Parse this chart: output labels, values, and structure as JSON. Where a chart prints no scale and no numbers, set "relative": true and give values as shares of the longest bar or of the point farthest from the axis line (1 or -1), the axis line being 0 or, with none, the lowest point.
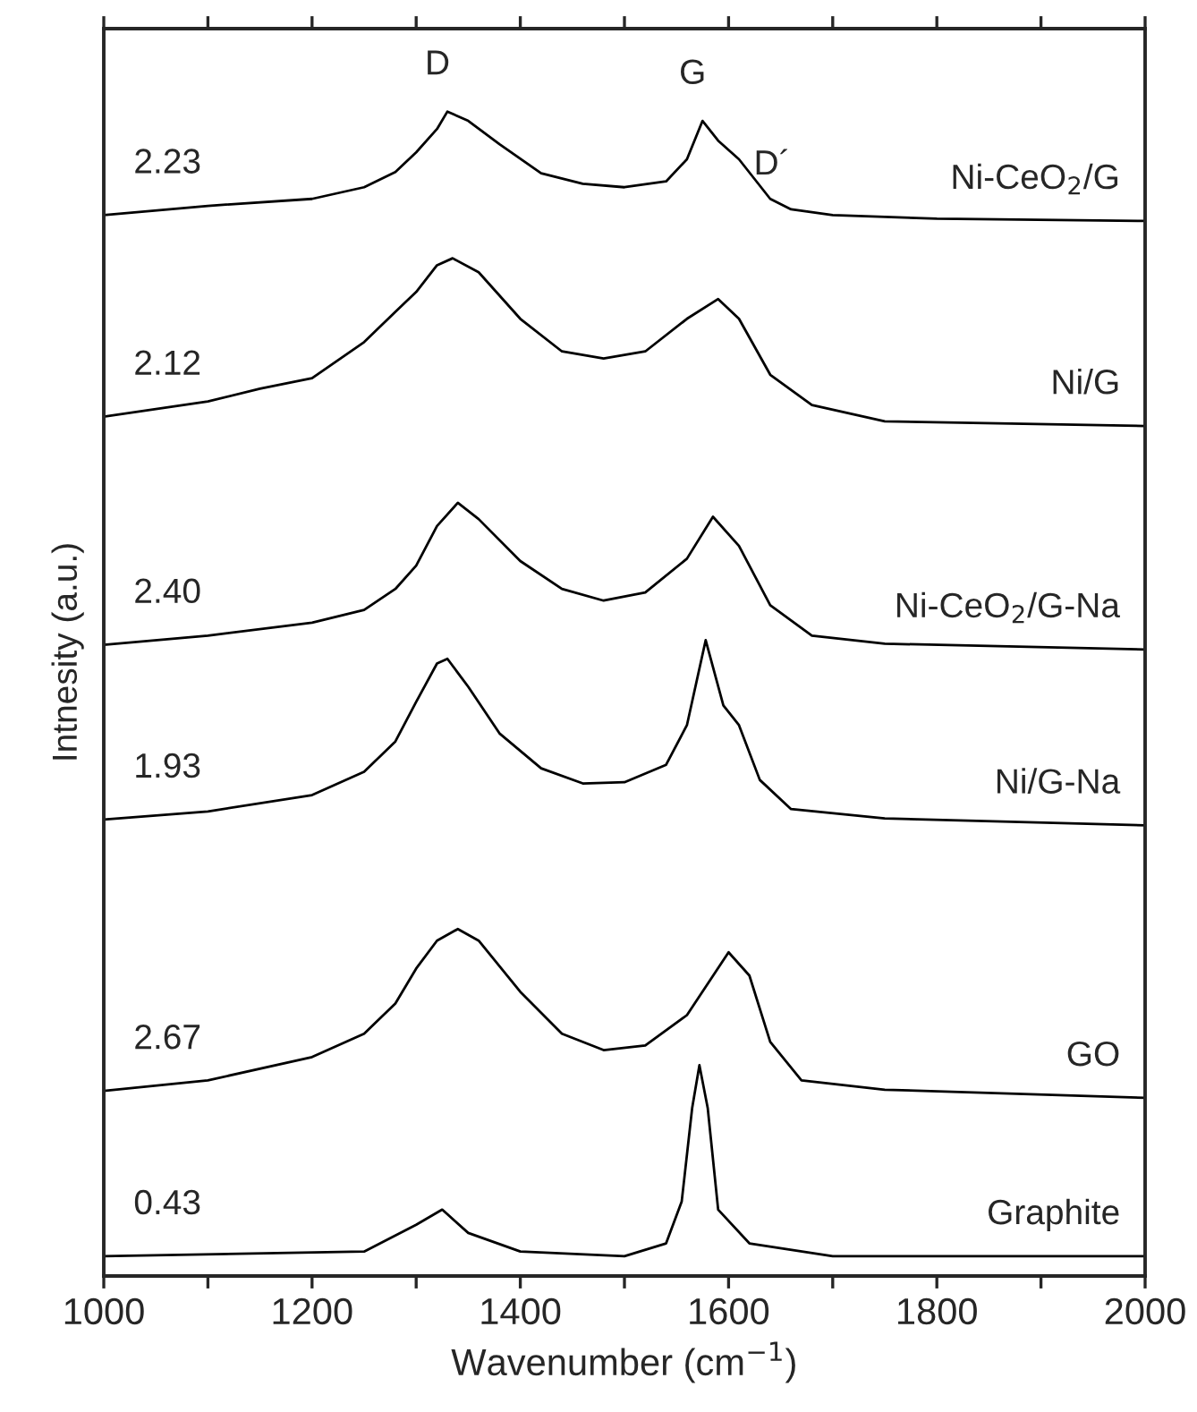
{
  "chart_data": {
    "type": "line",
    "relative": true,
    "xlabel": "Wavenumber (cm$^{−1}$)",
    "ylabel": "Intnesity (a.u.)",
    "xlim": [
      1000,
      2000
    ],
    "xticks": [
      1000,
      {
        "value": 1100,
        "label": null
      },
      1200,
      {
        "value": 1300,
        "label": null
      },
      1400,
      {
        "value": 1500,
        "label": null
      },
      1600,
      {
        "value": 1700,
        "label": null
      },
      1800,
      {
        "value": 1900,
        "label": null
      },
      2000
    ],
    "grid": false,
    "legend": false,
    "marker": "none",
    "line_style": "solid",
    "series": [
      {
        "name": "Ni-CeO$_{2}$/G",
        "color": "#000000",
        "x": [
          1000,
          1100,
          1200,
          1250,
          1280,
          1300,
          1320,
          1330,
          1350,
          1380,
          1420,
          1460,
          1500,
          1540,
          1560,
          1575,
          1590,
          1610,
          1640,
          1660,
          1700,
          1800,
          2000
        ],
        "values": [
          0.911,
          0.919,
          0.925,
          0.935,
          0.948,
          0.965,
          0.985,
          1.0,
          0.992,
          0.972,
          0.947,
          0.938,
          0.935,
          0.94,
          0.959,
          0.992,
          0.975,
          0.959,
          0.925,
          0.916,
          0.911,
          0.908,
          0.906
        ]
      },
      {
        "name": "Ni/G",
        "color": "#000000",
        "x": [
          1000,
          1100,
          1150,
          1200,
          1250,
          1280,
          1300,
          1320,
          1335,
          1360,
          1400,
          1440,
          1480,
          1520,
          1560,
          1590,
          1610,
          1640,
          1680,
          1750,
          2000
        ],
        "values": [
          0.738,
          0.751,
          0.762,
          0.771,
          0.802,
          0.828,
          0.845,
          0.868,
          0.874,
          0.862,
          0.822,
          0.794,
          0.788,
          0.794,
          0.822,
          0.839,
          0.822,
          0.774,
          0.748,
          0.734,
          0.73
        ]
      },
      {
        "name": "Ni-CeO$_{2}$/G-Na",
        "color": "#000000",
        "x": [
          1000,
          1100,
          1200,
          1250,
          1280,
          1300,
          1320,
          1340,
          1360,
          1400,
          1440,
          1480,
          1520,
          1560,
          1585,
          1610,
          1640,
          1680,
          1750,
          2000
        ],
        "values": [
          0.542,
          0.55,
          0.561,
          0.572,
          0.59,
          0.61,
          0.644,
          0.664,
          0.65,
          0.614,
          0.59,
          0.58,
          0.587,
          0.616,
          0.652,
          0.627,
          0.576,
          0.55,
          0.543,
          0.538
        ]
      },
      {
        "name": "Ni/G-Na",
        "color": "#000000",
        "x": [
          1000,
          1100,
          1200,
          1250,
          1280,
          1300,
          1320,
          1330,
          1350,
          1380,
          1420,
          1460,
          1500,
          1540,
          1560,
          1578,
          1595,
          1610,
          1630,
          1660,
          1750,
          2000
        ],
        "values": [
          0.392,
          0.399,
          0.413,
          0.433,
          0.459,
          0.493,
          0.526,
          0.53,
          0.506,
          0.466,
          0.436,
          0.423,
          0.424,
          0.439,
          0.473,
          0.546,
          0.49,
          0.473,
          0.426,
          0.401,
          0.393,
          0.387
        ]
      },
      {
        "name": "GO",
        "color": "#000000",
        "x": [
          1000,
          1100,
          1200,
          1250,
          1280,
          1300,
          1320,
          1340,
          1360,
          1400,
          1440,
          1480,
          1520,
          1560,
          1600,
          1620,
          1640,
          1670,
          1750,
          2000
        ],
        "values": [
          0.159,
          0.168,
          0.188,
          0.208,
          0.234,
          0.264,
          0.288,
          0.298,
          0.288,
          0.244,
          0.208,
          0.194,
          0.198,
          0.224,
          0.278,
          0.258,
          0.201,
          0.168,
          0.16,
          0.153
        ]
      },
      {
        "name": "Graphite",
        "color": "#000000",
        "x": [
          1000,
          1250,
          1300,
          1325,
          1350,
          1400,
          1500,
          1540,
          1555,
          1565,
          1572,
          1580,
          1590,
          1620,
          1700,
          2000
        ],
        "values": [
          0.017,
          0.021,
          0.044,
          0.057,
          0.037,
          0.021,
          0.017,
          0.028,
          0.064,
          0.144,
          0.181,
          0.144,
          0.057,
          0.028,
          0.017,
          0.017
        ]
      }
    ],
    "annotations": [
      "2.23",
      "2.12",
      "2.40",
      "1.93",
      "2.67",
      "0.43",
      "D",
      "G",
      "D´"
    ]
  }
}
